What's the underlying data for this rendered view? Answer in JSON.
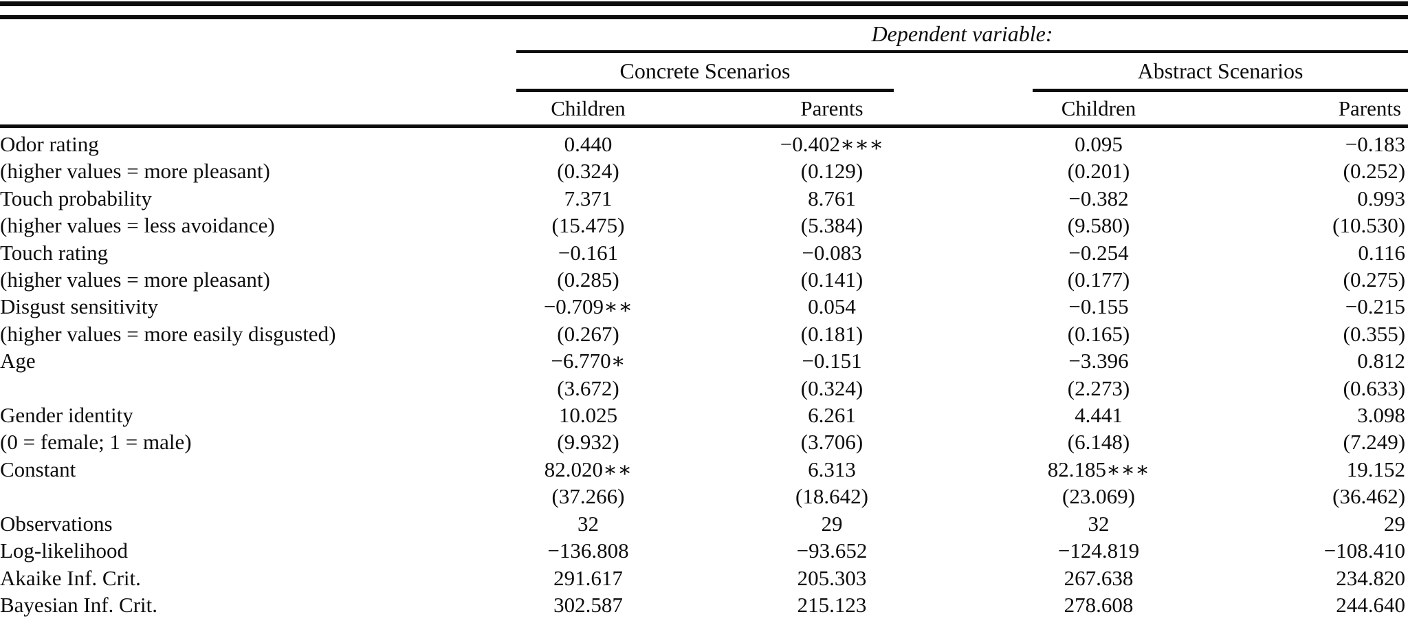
{
  "table": {
    "header": {
      "dependent_variable_label": "Dependent variable:",
      "groups": [
        {
          "label": "Concrete Scenarios"
        },
        {
          "label": "Abstract Scenarios"
        }
      ],
      "columns": [
        "Children",
        "Parents",
        "Children",
        "Parents"
      ]
    },
    "rows": [
      {
        "label": "Odor rating",
        "values": [
          "0.440",
          "−0.402∗∗∗",
          "0.095",
          "−0.183"
        ]
      },
      {
        "label": "(higher values = more pleasant)",
        "values": [
          "(0.324)",
          "(0.129)",
          "(0.201)",
          "(0.252)"
        ]
      },
      {
        "label": "Touch probability",
        "values": [
          "7.371",
          "8.761",
          "−0.382",
          "0.993"
        ]
      },
      {
        "label": "(higher values = less avoidance)",
        "values": [
          "(15.475)",
          "(5.384)",
          "(9.580)",
          "(10.530)"
        ]
      },
      {
        "label": "Touch rating",
        "values": [
          "−0.161",
          "−0.083",
          "−0.254",
          "0.116"
        ]
      },
      {
        "label": "(higher values = more pleasant)",
        "values": [
          "(0.285)",
          "(0.141)",
          "(0.177)",
          "(0.275)"
        ]
      },
      {
        "label": "Disgust sensitivity",
        "values": [
          "−0.709∗∗",
          "0.054",
          "−0.155",
          "−0.215"
        ]
      },
      {
        "label": "(higher values = more easily disgusted)",
        "values": [
          "(0.267)",
          "(0.181)",
          "(0.165)",
          "(0.355)"
        ]
      },
      {
        "label": "Age",
        "values": [
          "−6.770∗",
          "−0.151",
          "−3.396",
          "0.812"
        ]
      },
      {
        "label": "",
        "values": [
          "(3.672)",
          "(0.324)",
          "(2.273)",
          "(0.633)"
        ]
      },
      {
        "label": "Gender identity",
        "values": [
          "10.025",
          "6.261",
          "4.441",
          "3.098"
        ]
      },
      {
        "label": "(0 = female; 1 = male)",
        "values": [
          "(9.932)",
          "(3.706)",
          "(6.148)",
          "(7.249)"
        ]
      },
      {
        "label": "Constant",
        "values": [
          "82.020∗∗",
          "6.313",
          "82.185∗∗∗",
          "19.152"
        ]
      },
      {
        "label": "",
        "values": [
          "(37.266)",
          "(18.642)",
          "(23.069)",
          "(36.462)"
        ]
      },
      {
        "label": "Observations",
        "values": [
          "32",
          "29",
          "32",
          "29"
        ]
      },
      {
        "label": "Log-likelihood",
        "values": [
          "−136.808",
          "−93.652",
          "−124.819",
          "−108.410"
        ]
      },
      {
        "label": "Akaike Inf. Crit.",
        "values": [
          "291.617",
          "205.303",
          "267.638",
          "234.820"
        ]
      },
      {
        "label": "Bayesian Inf. Crit.",
        "values": [
          "302.587",
          "215.123",
          "278.608",
          "244.640"
        ]
      }
    ]
  }
}
